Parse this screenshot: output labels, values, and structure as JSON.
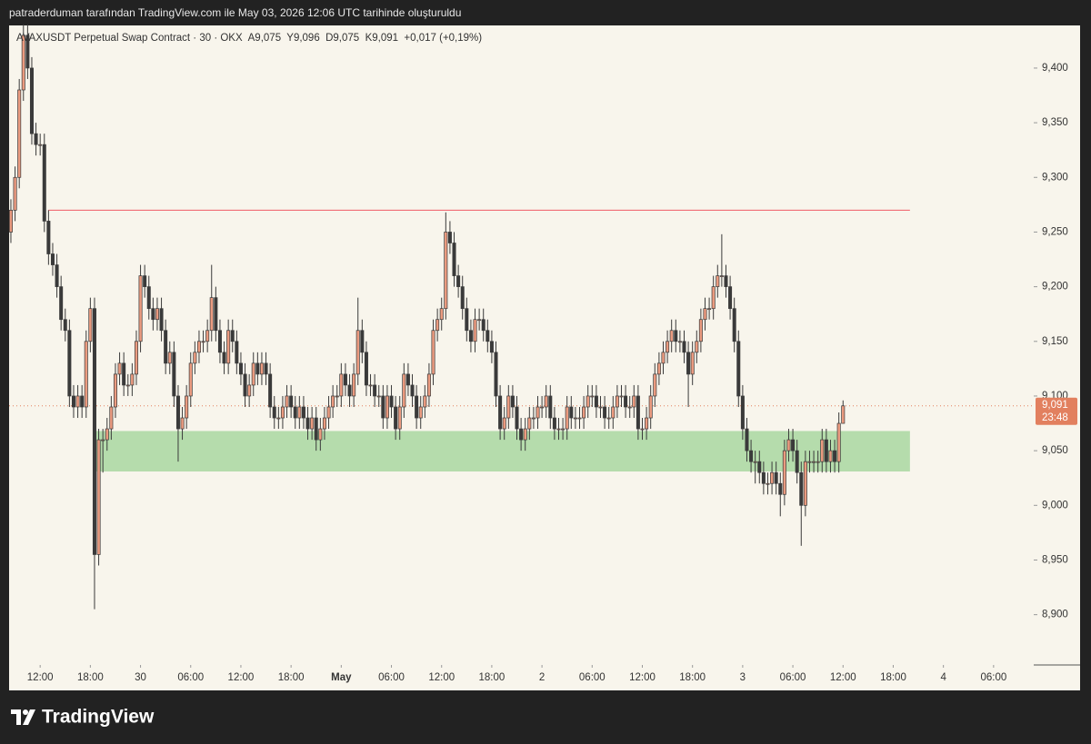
{
  "header": "patraderduman tarafından TradingView.com ile May 03, 2026 12:06 UTC tarihinde oluşturuldu",
  "logo": "TradingView",
  "chart_data": {
    "type": "candlestick",
    "legend": {
      "symbol": "AVAXUSDT Perpetual Swap Contract · 30 · OKX",
      "ohlc": "A9,075  Y9,096  D9,075  K9,091  +0,017 (+0,19%)"
    },
    "up_color": "#eb9b80",
    "down_color": "#3a3a3a",
    "wick_color": "#3a3a3a",
    "ylim": [
      8.854,
      9.439
    ],
    "yticks": [
      {
        "value": 8.9,
        "label": "8,900"
      },
      {
        "value": 8.95,
        "label": "8,950"
      },
      {
        "value": 9.0,
        "label": "9,000"
      },
      {
        "value": 9.05,
        "label": "9,050"
      },
      {
        "value": 9.1,
        "label": "9,100"
      },
      {
        "value": 9.15,
        "label": "9,150"
      },
      {
        "value": 9.2,
        "label": "9,200"
      },
      {
        "value": 9.25,
        "label": "9,250"
      },
      {
        "value": 9.3,
        "label": "9,300"
      },
      {
        "value": 9.35,
        "label": "9,350"
      },
      {
        "value": 9.4,
        "label": "9,400"
      }
    ],
    "xlim": [
      -0.43,
      244.6
    ],
    "xticks": [
      {
        "value": 7,
        "label": "12:00"
      },
      {
        "value": 19,
        "label": "18:00"
      },
      {
        "value": 31,
        "label": "30"
      },
      {
        "value": 43,
        "label": "06:00"
      },
      {
        "value": 55,
        "label": "12:00"
      },
      {
        "value": 67,
        "label": "18:00"
      },
      {
        "value": 79,
        "label": "May",
        "bold": true
      },
      {
        "value": 91,
        "label": "06:00"
      },
      {
        "value": 103,
        "label": "12:00"
      },
      {
        "value": 115,
        "label": "18:00"
      },
      {
        "value": 127,
        "label": "2"
      },
      {
        "value": 139,
        "label": "06:00"
      },
      {
        "value": 151,
        "label": "12:00"
      },
      {
        "value": 163,
        "label": "18:00"
      },
      {
        "value": 175,
        "label": "3"
      },
      {
        "value": 187,
        "label": "06:00"
      },
      {
        "value": 199,
        "label": "12:00"
      },
      {
        "value": 211,
        "label": "18:00"
      },
      {
        "value": 223,
        "label": "4"
      },
      {
        "value": 235,
        "label": "06:00"
      }
    ],
    "open": [
      9.25,
      9.27,
      9.3,
      9.38,
      9.43,
      9.4,
      9.34,
      9.33,
      9.33,
      9.26,
      9.23,
      9.22,
      9.2,
      9.17,
      9.16,
      9.1,
      9.09,
      9.1,
      9.09,
      9.15,
      9.18,
      8.955,
      9.06,
      9.06,
      9.07,
      9.09,
      9.12,
      9.13,
      9.11,
      9.11,
      9.12,
      9.15,
      9.21,
      9.2,
      9.18,
      9.17,
      9.18,
      9.16,
      9.13,
      9.14,
      9.1,
      9.07,
      9.08,
      9.1,
      9.13,
      9.14,
      9.15,
      9.15,
      9.16,
      9.19,
      9.16,
      9.14,
      9.13,
      9.16,
      9.15,
      9.13,
      9.12,
      9.1,
      9.11,
      9.13,
      9.12,
      9.13,
      9.12,
      9.09,
      9.08,
      9.08,
      9.09,
      9.1,
      9.09,
      9.08,
      9.09,
      9.08,
      9.07,
      9.08,
      9.06,
      9.07,
      9.08,
      9.09,
      9.1,
      9.1,
      9.12,
      9.11,
      9.1,
      9.12,
      9.16,
      9.14,
      9.11,
      9.11,
      9.1,
      9.1,
      9.08,
      9.1,
      9.09,
      9.07,
      9.09,
      9.12,
      9.11,
      9.1,
      9.08,
      9.09,
      9.1,
      9.12,
      9.16,
      9.17,
      9.18,
      9.25,
      9.24,
      9.21,
      9.2,
      9.18,
      9.16,
      9.15,
      9.17,
      9.17,
      9.16,
      9.15,
      9.14,
      9.1,
      9.07,
      9.08,
      9.1,
      9.09,
      9.07,
      9.06,
      9.07,
      9.08,
      9.08,
      9.09,
      9.09,
      9.1,
      9.08,
      9.07,
      9.07,
      9.07,
      9.09,
      9.08,
      9.08,
      9.08,
      9.09,
      9.1,
      9.1,
      9.09,
      9.09,
      9.08,
      9.08,
      9.09,
      9.1,
      9.1,
      9.09,
      9.09,
      9.1,
      9.07,
      9.07,
      9.08,
      9.1,
      9.12,
      9.13,
      9.14,
      9.15,
      9.16,
      9.15,
      9.15,
      9.14,
      9.12,
      9.14,
      9.15,
      9.17,
      9.18,
      9.18,
      9.2,
      9.21,
      9.21,
      9.2,
      9.18,
      9.15,
      9.1,
      9.07,
      9.05,
      9.04,
      9.04,
      9.03,
      9.02,
      9.02,
      9.03,
      9.02,
      9.01,
      9.05,
      9.06,
      9.05,
      9.03,
      9.0,
      9.04,
      9.04,
      9.04,
      9.04,
      9.06,
      9.04,
      9.05,
      9.04,
      9.075
    ],
    "high": [
      9.28,
      9.31,
      9.39,
      9.44,
      9.44,
      9.41,
      9.35,
      9.34,
      9.34,
      9.27,
      9.24,
      9.23,
      9.21,
      9.18,
      9.17,
      9.11,
      9.11,
      9.11,
      9.16,
      9.19,
      9.19,
      9.07,
      9.07,
      9.08,
      9.1,
      9.13,
      9.14,
      9.14,
      9.12,
      9.13,
      9.16,
      9.22,
      9.22,
      9.21,
      9.19,
      9.19,
      9.19,
      9.17,
      9.15,
      9.15,
      9.11,
      9.09,
      9.11,
      9.14,
      9.15,
      9.16,
      9.16,
      9.17,
      9.22,
      9.2,
      9.17,
      9.15,
      9.17,
      9.17,
      9.16,
      9.14,
      9.13,
      9.12,
      9.14,
      9.14,
      9.14,
      9.14,
      9.13,
      9.1,
      9.09,
      9.1,
      9.11,
      9.11,
      9.1,
      9.1,
      9.1,
      9.09,
      9.09,
      9.09,
      9.08,
      9.09,
      9.1,
      9.11,
      9.11,
      9.13,
      9.13,
      9.12,
      9.13,
      9.19,
      9.17,
      9.15,
      9.12,
      9.12,
      9.11,
      9.11,
      9.11,
      9.11,
      9.1,
      9.1,
      9.13,
      9.13,
      9.12,
      9.11,
      9.1,
      9.11,
      9.13,
      9.17,
      9.18,
      9.19,
      9.268,
      9.26,
      9.25,
      9.22,
      9.21,
      9.19,
      9.17,
      9.18,
      9.18,
      9.18,
      9.17,
      9.16,
      9.15,
      9.11,
      9.09,
      9.11,
      9.11,
      9.1,
      9.08,
      9.08,
      9.09,
      9.09,
      9.1,
      9.1,
      9.11,
      9.11,
      9.09,
      9.08,
      9.08,
      9.1,
      9.1,
      9.09,
      9.09,
      9.1,
      9.11,
      9.11,
      9.11,
      9.1,
      9.1,
      9.09,
      9.1,
      9.11,
      9.11,
      9.11,
      9.1,
      9.11,
      9.11,
      9.08,
      9.09,
      9.11,
      9.13,
      9.14,
      9.15,
      9.16,
      9.17,
      9.17,
      9.16,
      9.16,
      9.15,
      9.15,
      9.16,
      9.18,
      9.19,
      9.19,
      9.21,
      9.22,
      9.248,
      9.22,
      9.21,
      9.19,
      9.16,
      9.11,
      9.08,
      9.06,
      9.05,
      9.05,
      9.04,
      9.03,
      9.04,
      9.04,
      9.03,
      9.06,
      9.07,
      9.07,
      9.06,
      9.04,
      9.05,
      9.05,
      9.05,
      9.05,
      9.07,
      9.07,
      9.06,
      9.06,
      9.085,
      9.096
    ],
    "low": [
      9.24,
      9.26,
      9.29,
      9.37,
      9.39,
      9.33,
      9.32,
      9.32,
      9.25,
      9.22,
      9.21,
      9.19,
      9.16,
      9.15,
      9.09,
      9.08,
      9.08,
      9.08,
      9.08,
      9.14,
      8.905,
      8.945,
      9.03,
      9.05,
      9.06,
      9.08,
      9.11,
      9.1,
      9.1,
      9.1,
      9.11,
      9.14,
      9.19,
      9.17,
      9.16,
      9.16,
      9.15,
      9.12,
      9.12,
      9.09,
      9.04,
      9.06,
      9.07,
      9.09,
      9.12,
      9.13,
      9.14,
      9.14,
      9.15,
      9.15,
      9.13,
      9.12,
      9.12,
      9.14,
      9.12,
      9.11,
      9.09,
      9.09,
      9.1,
      9.11,
      9.11,
      9.11,
      9.08,
      9.07,
      9.07,
      9.07,
      9.08,
      9.08,
      9.07,
      9.07,
      9.07,
      9.06,
      9.06,
      9.05,
      9.05,
      9.06,
      9.07,
      9.08,
      9.09,
      9.09,
      9.1,
      9.09,
      9.09,
      9.11,
      9.13,
      9.1,
      9.1,
      9.09,
      9.09,
      9.07,
      9.07,
      9.08,
      9.06,
      9.06,
      9.08,
      9.1,
      9.09,
      9.07,
      9.07,
      9.08,
      9.09,
      9.11,
      9.15,
      9.16,
      9.17,
      9.23,
      9.2,
      9.19,
      9.17,
      9.15,
      9.14,
      9.14,
      9.16,
      9.15,
      9.14,
      9.13,
      9.09,
      9.06,
      9.06,
      9.07,
      9.08,
      9.06,
      9.05,
      9.05,
      9.06,
      9.07,
      9.07,
      9.08,
      9.08,
      9.07,
      9.06,
      9.06,
      9.06,
      9.06,
      9.07,
      9.07,
      9.07,
      9.07,
      9.08,
      9.09,
      9.08,
      9.08,
      9.07,
      9.07,
      9.07,
      9.08,
      9.09,
      9.08,
      9.08,
      9.08,
      9.06,
      9.06,
      9.06,
      9.07,
      9.09,
      9.11,
      9.12,
      9.13,
      9.14,
      9.14,
      9.14,
      9.13,
      9.09,
      9.11,
      9.13,
      9.14,
      9.16,
      9.17,
      9.17,
      9.19,
      9.2,
      9.19,
      9.17,
      9.14,
      9.09,
      9.06,
      9.04,
      9.03,
      9.02,
      9.02,
      9.01,
      9.01,
      9.01,
      9.01,
      8.99,
      9.0,
      9.04,
      9.04,
      9.02,
      8.963,
      8.99,
      9.03,
      9.03,
      9.03,
      9.03,
      9.03,
      9.03,
      9.03,
      9.03,
      9.075
    ],
    "close": [
      9.27,
      9.3,
      9.38,
      9.43,
      9.4,
      9.34,
      9.33,
      9.33,
      9.26,
      9.23,
      9.22,
      9.2,
      9.17,
      9.16,
      9.1,
      9.09,
      9.1,
      9.09,
      9.15,
      9.18,
      8.955,
      9.06,
      9.06,
      9.07,
      9.09,
      9.12,
      9.13,
      9.11,
      9.11,
      9.12,
      9.15,
      9.21,
      9.2,
      9.18,
      9.17,
      9.18,
      9.16,
      9.13,
      9.14,
      9.1,
      9.07,
      9.08,
      9.1,
      9.13,
      9.14,
      9.15,
      9.15,
      9.16,
      9.19,
      9.16,
      9.14,
      9.13,
      9.16,
      9.15,
      9.13,
      9.12,
      9.1,
      9.11,
      9.13,
      9.12,
      9.13,
      9.12,
      9.09,
      9.08,
      9.08,
      9.09,
      9.1,
      9.09,
      9.08,
      9.09,
      9.08,
      9.07,
      9.08,
      9.06,
      9.07,
      9.08,
      9.09,
      9.1,
      9.1,
      9.12,
      9.11,
      9.1,
      9.12,
      9.16,
      9.14,
      9.11,
      9.11,
      9.1,
      9.1,
      9.08,
      9.1,
      9.09,
      9.07,
      9.09,
      9.12,
      9.11,
      9.1,
      9.08,
      9.09,
      9.1,
      9.12,
      9.16,
      9.17,
      9.18,
      9.25,
      9.24,
      9.21,
      9.2,
      9.18,
      9.16,
      9.15,
      9.17,
      9.17,
      9.16,
      9.15,
      9.14,
      9.1,
      9.07,
      9.08,
      9.1,
      9.09,
      9.07,
      9.06,
      9.07,
      9.08,
      9.08,
      9.09,
      9.09,
      9.1,
      9.08,
      9.07,
      9.07,
      9.07,
      9.09,
      9.08,
      9.08,
      9.08,
      9.09,
      9.1,
      9.1,
      9.09,
      9.09,
      9.08,
      9.08,
      9.09,
      9.1,
      9.1,
      9.09,
      9.09,
      9.1,
      9.07,
      9.07,
      9.08,
      9.1,
      9.12,
      9.13,
      9.14,
      9.15,
      9.16,
      9.15,
      9.15,
      9.14,
      9.12,
      9.14,
      9.15,
      9.17,
      9.18,
      9.18,
      9.2,
      9.21,
      9.21,
      9.2,
      9.18,
      9.15,
      9.1,
      9.07,
      9.05,
      9.04,
      9.04,
      9.03,
      9.02,
      9.02,
      9.03,
      9.02,
      9.01,
      9.05,
      9.06,
      9.05,
      9.03,
      9.0,
      9.04,
      9.04,
      9.04,
      9.04,
      9.06,
      9.04,
      9.05,
      9.04,
      9.075,
      9.091
    ],
    "level": {
      "value": 9.27,
      "from": 9,
      "to": 215,
      "color": "#f05a66"
    },
    "zone": {
      "low": 9.031,
      "high": 9.068,
      "from": 20,
      "to": 215,
      "color": "#b5dcac"
    },
    "last_price": {
      "value": 9.091,
      "label": "9,091",
      "countdown": "23:48",
      "color": "#e2805f"
    }
  }
}
